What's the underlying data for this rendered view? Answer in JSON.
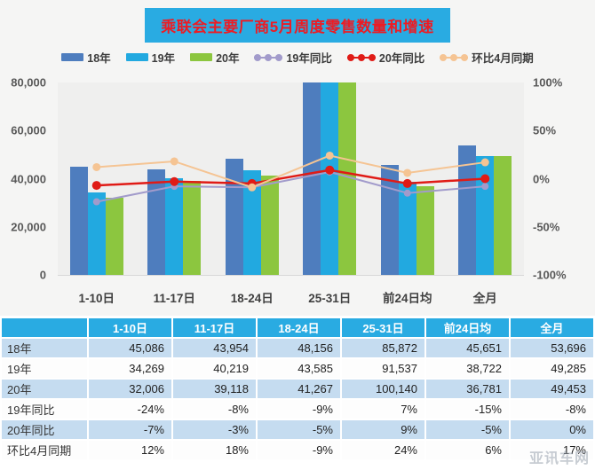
{
  "title": "乘联会主要厂商5月周度零售数量和增速",
  "watermark": "亚讯车网",
  "legend": {
    "items": [
      {
        "label": "18年",
        "type": "bar",
        "color": "#4e7dbe"
      },
      {
        "label": "19年",
        "type": "bar",
        "color": "#22a9e0"
      },
      {
        "label": "20年",
        "type": "bar",
        "color": "#8cc63f"
      },
      {
        "label": "19年同比",
        "type": "line",
        "color": "#a29bcb"
      },
      {
        "label": "20年同比",
        "type": "line",
        "color": "#e01b16"
      },
      {
        "label": "环比4月同期",
        "type": "line",
        "color": "#f5c493"
      }
    ]
  },
  "chart_data": {
    "type": "bar",
    "subtype": "grouped-bars-with-lines",
    "title": "乘联会主要厂商5月周度零售数量和增速",
    "categories": [
      "1-10日",
      "11-17日",
      "18-24日",
      "25-31日",
      "前24日均",
      "全月"
    ],
    "series": [
      {
        "name": "18年",
        "type": "bar",
        "axis": "left",
        "color": "#4e7dbe",
        "values": [
          45086,
          43954,
          48156,
          85872,
          45651,
          53696
        ]
      },
      {
        "name": "19年",
        "type": "bar",
        "axis": "left",
        "color": "#22a9e0",
        "values": [
          34269,
          40219,
          43585,
          91537,
          38722,
          49285
        ]
      },
      {
        "name": "20年",
        "type": "bar",
        "axis": "left",
        "color": "#8cc63f",
        "values": [
          32006,
          39118,
          41267,
          100140,
          36781,
          49453
        ]
      },
      {
        "name": "19年同比",
        "type": "line",
        "axis": "right",
        "color": "#a29bcb",
        "values": [
          -24,
          -8,
          -9,
          7,
          -15,
          -8
        ]
      },
      {
        "name": "20年同比",
        "type": "line",
        "axis": "right",
        "color": "#e01b16",
        "values": [
          -7,
          -3,
          -5,
          9,
          -5,
          0
        ]
      },
      {
        "name": "环比4月同期",
        "type": "line",
        "axis": "right",
        "color": "#f5c493",
        "values": [
          12,
          18,
          -9,
          24,
          6,
          17
        ]
      }
    ],
    "left_axis": {
      "min": 0,
      "max": 80000,
      "ticks": [
        {
          "label": "0",
          "value": 0
        },
        {
          "label": "20,000",
          "value": 20000
        },
        {
          "label": "40,000",
          "value": 40000
        },
        {
          "label": "60,000",
          "value": 60000
        },
        {
          "label": "80,000",
          "value": 80000
        }
      ]
    },
    "right_axis": {
      "min": -100,
      "max": 100,
      "ticks": [
        {
          "label": "-100%",
          "value": -100
        },
        {
          "label": "-50%",
          "value": -50
        },
        {
          "label": "0%",
          "value": 0
        },
        {
          "label": "50%",
          "value": 50
        },
        {
          "label": "100%",
          "value": 100
        }
      ]
    },
    "grid": false,
    "legend_position": "top"
  },
  "table": {
    "header": [
      "",
      "1-10日",
      "11-17日",
      "18-24日",
      "25-31日",
      "前24日均",
      "全月"
    ],
    "rows": [
      {
        "label": "18年",
        "cells": [
          "45,086",
          "43,954",
          "48,156",
          "85,872",
          "45,651",
          "53,696"
        ]
      },
      {
        "label": "19年",
        "cells": [
          "34,269",
          "40,219",
          "43,585",
          "91,537",
          "38,722",
          "49,285"
        ]
      },
      {
        "label": "20年",
        "cells": [
          "32,006",
          "39,118",
          "41,267",
          "100,140",
          "36,781",
          "49,453"
        ]
      },
      {
        "label": "19年同比",
        "cells": [
          "-24%",
          "-8%",
          "-9%",
          "7%",
          "-15%",
          "-8%"
        ]
      },
      {
        "label": "20年同比",
        "cells": [
          "-7%",
          "-3%",
          "-5%",
          "9%",
          "-5%",
          "0%"
        ]
      },
      {
        "label": "环比4月同期",
        "cells": [
          "12%",
          "18%",
          "-9%",
          "24%",
          "6%",
          "17%"
        ]
      }
    ]
  }
}
